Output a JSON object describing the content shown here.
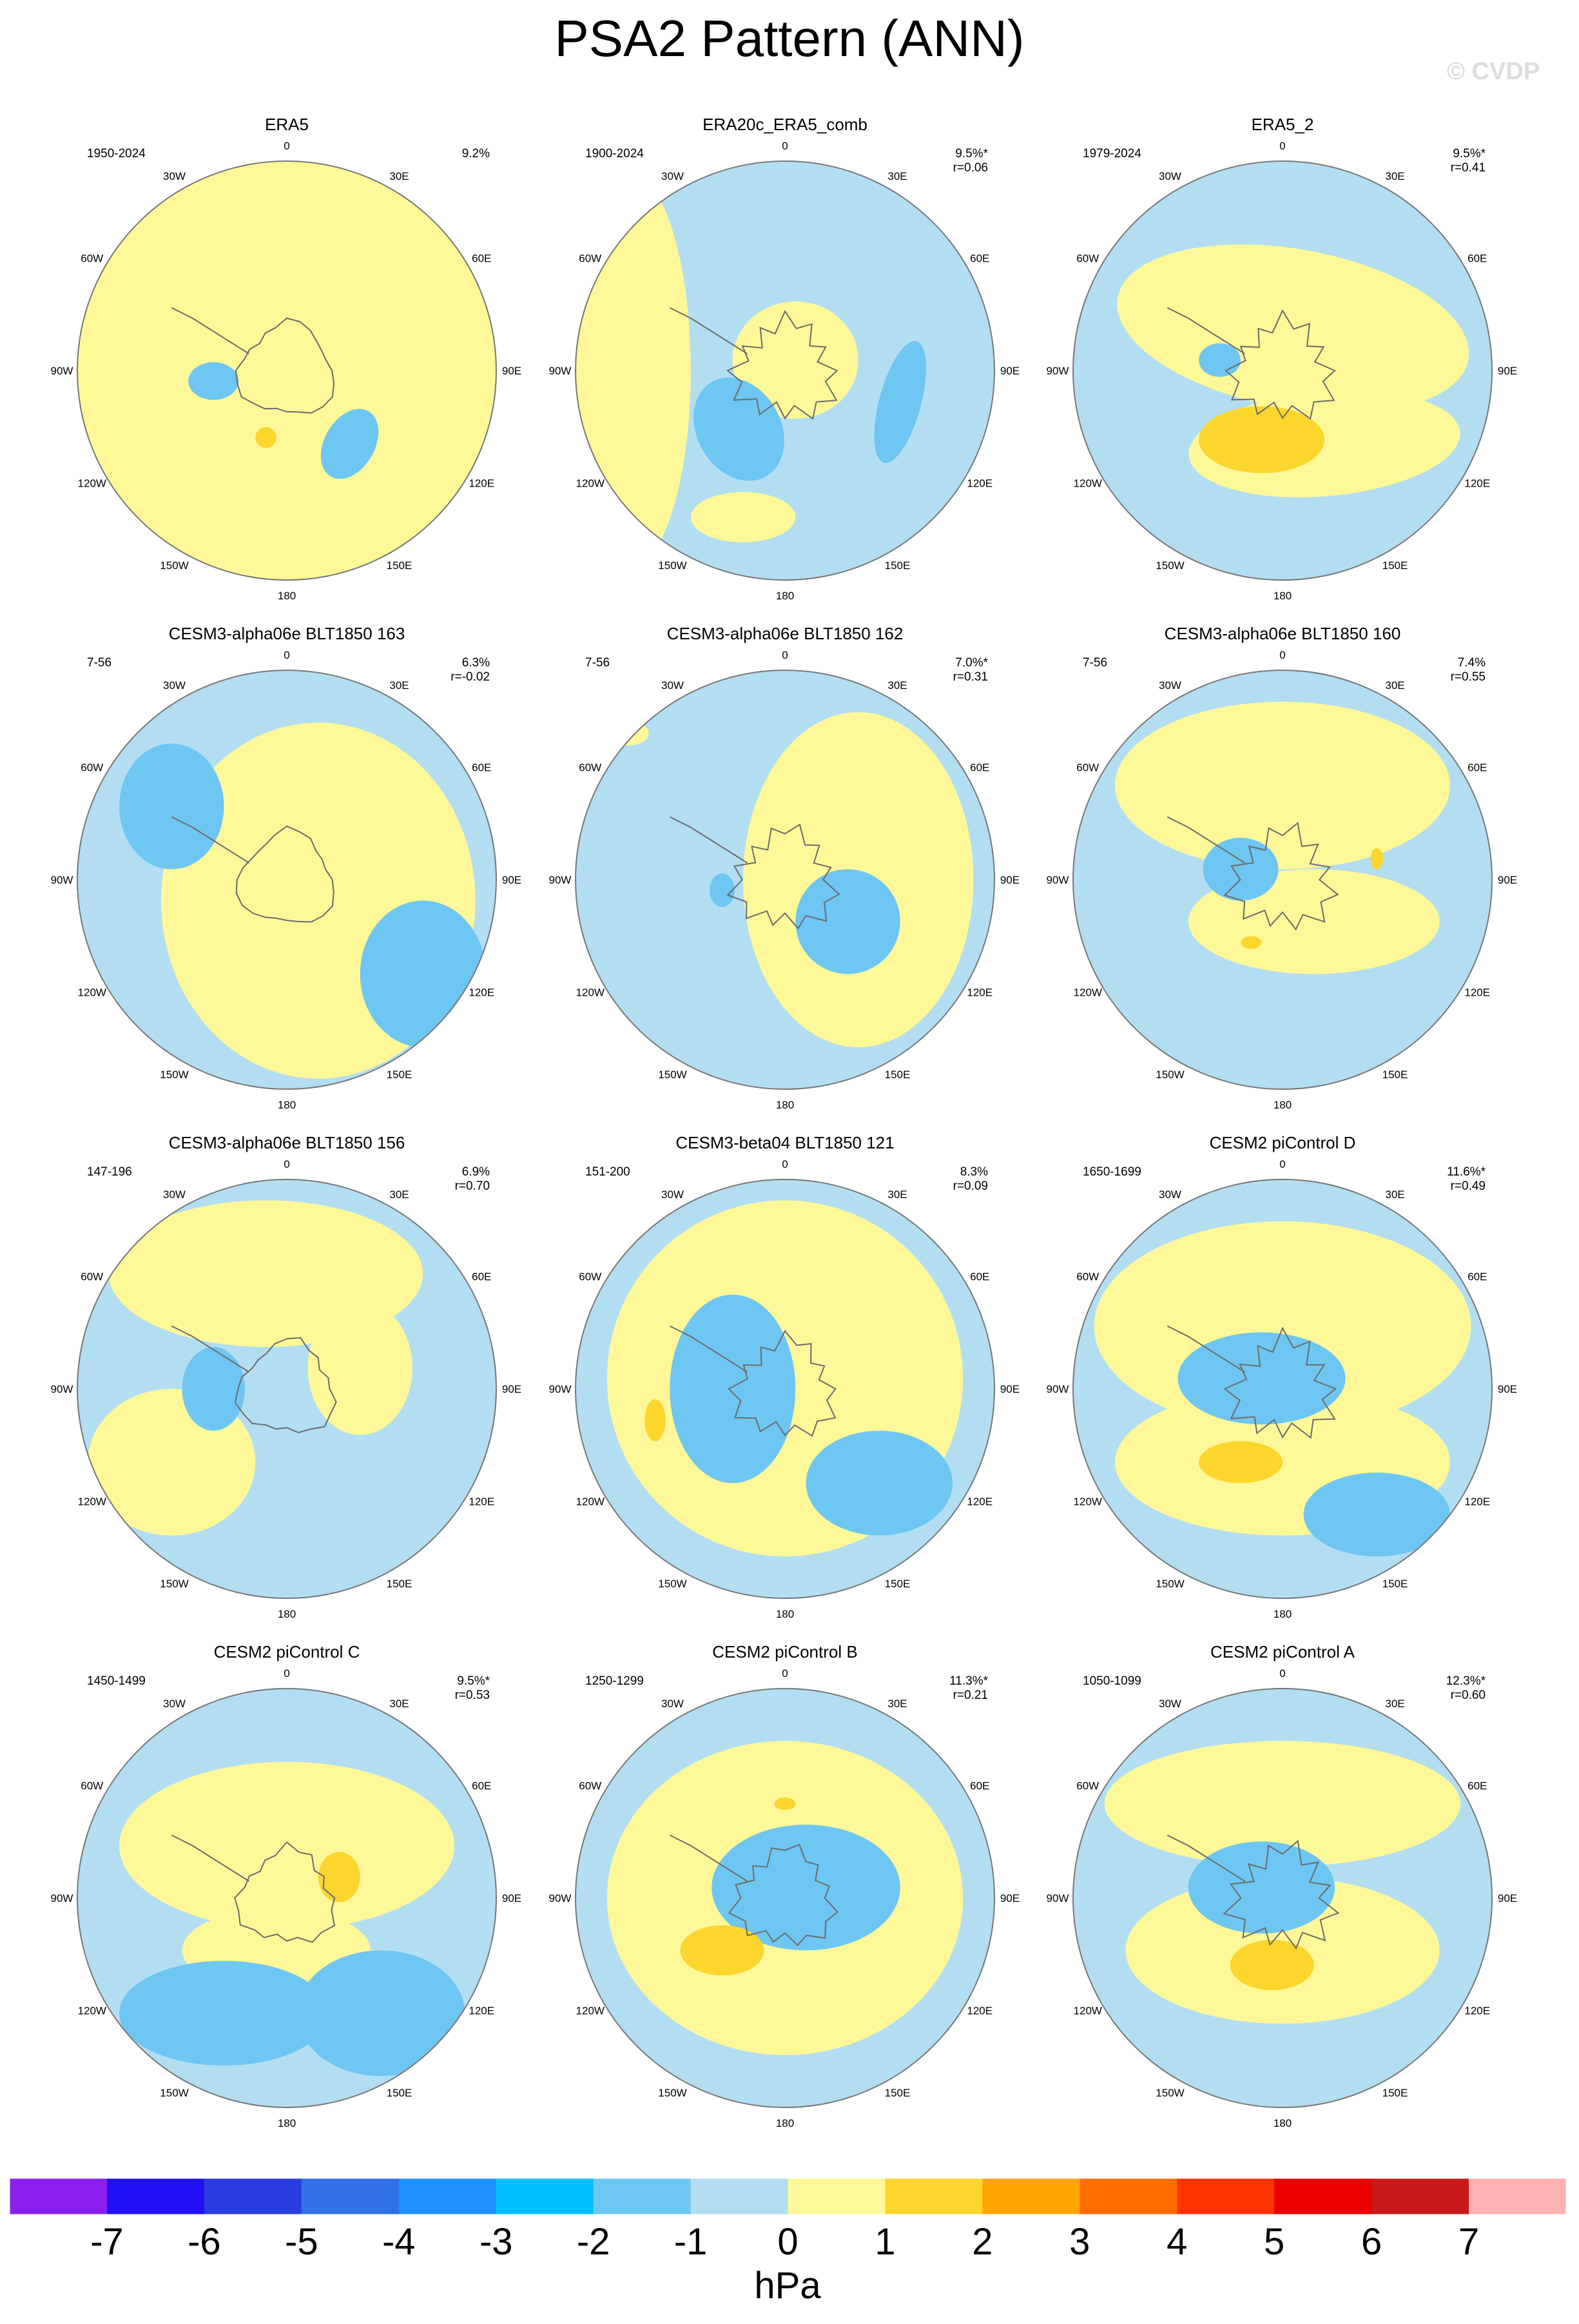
{
  "title": "PSA2 Pattern (ANN)",
  "watermark": "© CVDP",
  "colors": {
    "ocean_land_outline": "#6b6b6b",
    "neg2": "#6ec6f2",
    "neg1": "#b3def2",
    "pos1": "#fff899",
    "pos2": "#fcd62d"
  },
  "chart_data": {
    "type": "heatmap",
    "projection": "south polar stereographic",
    "variable": "sea level pressure EOF pattern",
    "longitude_labels": [
      "0",
      "30E",
      "60E",
      "90E",
      "120E",
      "150E",
      "180",
      "150W",
      "120W",
      "90W",
      "60W",
      "30W"
    ],
    "panels": [
      {
        "title": "ERA5",
        "period": "1950-2024",
        "pct": "9.2%",
        "r": ""
      },
      {
        "title": "ERA20c_ERA5_comb",
        "period": "1900-2024",
        "pct": "9.5%*",
        "r": "r=0.06"
      },
      {
        "title": "ERA5_2",
        "period": "1979-2024",
        "pct": "9.5%*",
        "r": "r=0.41"
      },
      {
        "title": "CESM3-alpha06e BLT1850 163",
        "period": "7-56",
        "pct": "6.3%",
        "r": "r=-0.02"
      },
      {
        "title": "CESM3-alpha06e BLT1850 162",
        "period": "7-56",
        "pct": "7.0%*",
        "r": "r=0.31"
      },
      {
        "title": "CESM3-alpha06e BLT1850 160",
        "period": "7-56",
        "pct": "7.4%",
        "r": "r=0.55"
      },
      {
        "title": "CESM3-alpha06e BLT1850 156",
        "period": "147-196",
        "pct": "6.9%",
        "r": "r=0.70"
      },
      {
        "title": "CESM3-beta04 BLT1850 121",
        "period": "151-200",
        "pct": "8.3%",
        "r": "r=0.09"
      },
      {
        "title": "CESM2 piControl D",
        "period": "1650-1699",
        "pct": "11.6%*",
        "r": "r=0.49"
      },
      {
        "title": "CESM2 piControl C",
        "period": "1450-1499",
        "pct": "9.5%*",
        "r": "r=0.53"
      },
      {
        "title": "CESM2 piControl B",
        "period": "1250-1299",
        "pct": "11.3%*",
        "r": "r=0.21"
      },
      {
        "title": "CESM2 piControl A",
        "period": "1050-1099",
        "pct": "12.3%*",
        "r": "r=0.60"
      }
    ],
    "colorbar": {
      "unit": "hPa",
      "tick_labels": [
        "-7",
        "-6",
        "-5",
        "-4",
        "-3",
        "-2",
        "-1",
        "0",
        "1",
        "2",
        "3",
        "4",
        "5",
        "6",
        "7"
      ],
      "colors": [
        "#8a1ff0",
        "#1f10f5",
        "#2a3de0",
        "#3270e6",
        "#1e90ff",
        "#00bfff",
        "#6ec6f2",
        "#b3def2",
        "#fff899",
        "#fcd62d",
        "#ffa500",
        "#ff6c00",
        "#ff3300",
        "#ea0000",
        "#c81a1a",
        "#ffb2b2"
      ]
    }
  }
}
